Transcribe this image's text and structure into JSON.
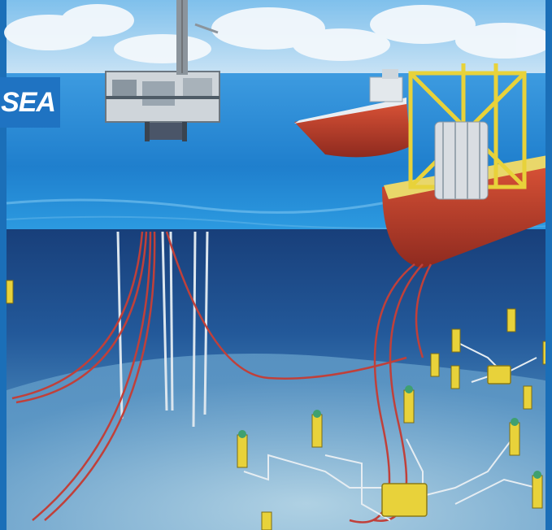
{
  "overlay_label": {
    "text": "SEA"
  },
  "colors": {
    "frame": "#1b6fb8",
    "sky_top": "#8ec9ee",
    "sea_surface": "#2a8fd2",
    "deep_water": "#1e4f8e",
    "seabed": "#7fb3d3",
    "hull_red": "#c8422e",
    "deck_yellow": "#e8d23a",
    "riser_red": "#c0403a",
    "flowline_white": "#e6edf2"
  },
  "scene": {
    "platform": "fixed-platform",
    "tanker": "shuttle-tanker",
    "fpso": "fpso-vessel",
    "subsea_equipment": [
      "wellhead-trees",
      "manifolds",
      "flowlines",
      "risers"
    ]
  }
}
